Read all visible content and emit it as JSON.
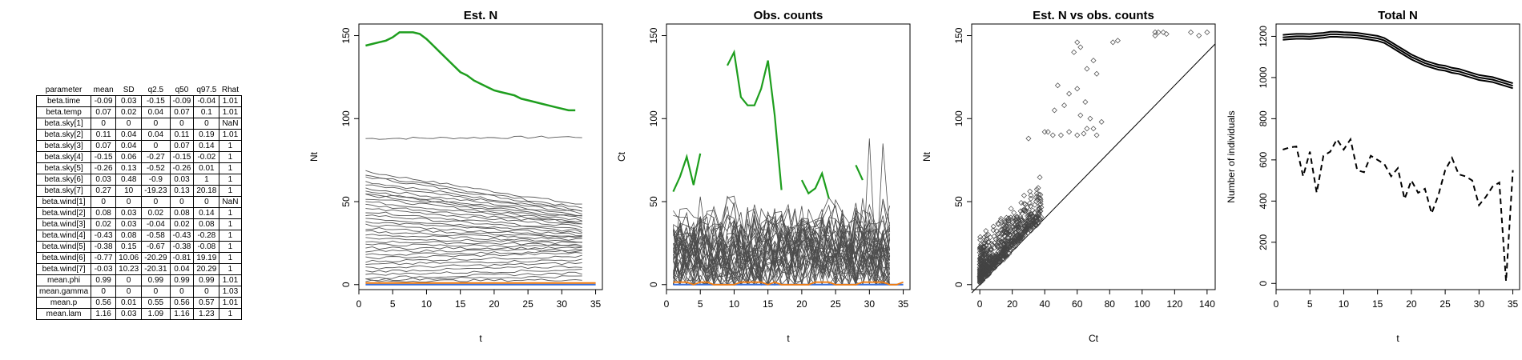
{
  "table": {
    "headers": [
      "parameter",
      "mean",
      "SD",
      "q2.5",
      "q50",
      "q97.5",
      "Rhat"
    ],
    "rows": [
      [
        "beta.time",
        "-0.09",
        "0.03",
        "-0.15",
        "-0.09",
        "-0.04",
        "1.01"
      ],
      [
        "beta.temp",
        "0.07",
        "0.02",
        "0.04",
        "0.07",
        "0.1",
        "1.01"
      ],
      [
        "beta.sky[1]",
        "0",
        "0",
        "0",
        "0",
        "0",
        "NaN"
      ],
      [
        "beta.sky[2]",
        "0.11",
        "0.04",
        "0.04",
        "0.11",
        "0.19",
        "1.01"
      ],
      [
        "beta.sky[3]",
        "0.07",
        "0.04",
        "0",
        "0.07",
        "0.14",
        "1"
      ],
      [
        "beta.sky[4]",
        "-0.15",
        "0.06",
        "-0.27",
        "-0.15",
        "-0.02",
        "1"
      ],
      [
        "beta.sky[5]",
        "-0.26",
        "0.13",
        "-0.52",
        "-0.26",
        "0.01",
        "1"
      ],
      [
        "beta.sky[6]",
        "0.03",
        "0.48",
        "-0.9",
        "0.03",
        "1",
        "1"
      ],
      [
        "beta.sky[7]",
        "0.27",
        "10",
        "-19.23",
        "0.13",
        "20.18",
        "1"
      ],
      [
        "beta.wind[1]",
        "0",
        "0",
        "0",
        "0",
        "0",
        "NaN"
      ],
      [
        "beta.wind[2]",
        "0.08",
        "0.03",
        "0.02",
        "0.08",
        "0.14",
        "1"
      ],
      [
        "beta.wind[3]",
        "0.02",
        "0.03",
        "-0.04",
        "0.02",
        "0.08",
        "1"
      ],
      [
        "beta.wind[4]",
        "-0.43",
        "0.08",
        "-0.58",
        "-0.43",
        "-0.28",
        "1"
      ],
      [
        "beta.wind[5]",
        "-0.38",
        "0.15",
        "-0.67",
        "-0.38",
        "-0.08",
        "1"
      ],
      [
        "beta.wind[6]",
        "-0.77",
        "10.06",
        "-20.29",
        "-0.81",
        "19.19",
        "1"
      ],
      [
        "beta.wind[7]",
        "-0.03",
        "10.23",
        "-20.31",
        "0.04",
        "20.29",
        "1"
      ],
      [
        "mean.phi",
        "0.99",
        "0",
        "0.99",
        "0.99",
        "0.99",
        "1.01"
      ],
      [
        "mean.gamma",
        "0",
        "0",
        "0",
        "0",
        "0",
        "1.03"
      ],
      [
        "mean.p",
        "0.56",
        "0.01",
        "0.55",
        "0.56",
        "0.57",
        "1.01"
      ],
      [
        "mean.lam",
        "1.16",
        "0.03",
        "1.09",
        "1.16",
        "1.23",
        "1"
      ]
    ]
  },
  "colors": {
    "green": "#1e9e1e",
    "orange": "#f07b0f",
    "blue": "#3a6fd8",
    "grey": "#4d4d4d",
    "black": "#000000"
  },
  "chart_data": [
    {
      "type": "line",
      "title": "Est. N",
      "xlabel": "t",
      "ylabel": "Nt",
      "xlim": [
        0,
        36
      ],
      "ylim": [
        -3,
        157
      ],
      "xticks": [
        0,
        5,
        10,
        15,
        20,
        25,
        30,
        35
      ],
      "yticks": [
        0,
        50,
        100,
        150
      ],
      "x_start": 1,
      "highlight_series": [
        {
          "color": "green",
          "values": [
            144,
            145,
            146,
            147,
            149,
            152,
            152,
            152,
            151,
            148,
            144,
            140,
            136,
            132,
            128,
            126,
            123,
            121,
            119,
            117,
            116,
            115,
            114,
            112,
            111,
            110,
            109,
            108,
            107,
            106,
            105,
            105
          ]
        }
      ],
      "grey_series_start": [
        88,
        68,
        66,
        65,
        62,
        60,
        58,
        56,
        55,
        54,
        52,
        50,
        48,
        46,
        44,
        42,
        40,
        38,
        36,
        34,
        32,
        30,
        28,
        26,
        24,
        22,
        20,
        18,
        16,
        14,
        12,
        10,
        8,
        6,
        4,
        3,
        2
      ],
      "grey_series_end": [
        89,
        48,
        46,
        45,
        44,
        43,
        42,
        41,
        40,
        39,
        38,
        37,
        36,
        35,
        33,
        32,
        31,
        30,
        29,
        28,
        27,
        26,
        25,
        24,
        23,
        22,
        21,
        20,
        19,
        17,
        15,
        13,
        11,
        9,
        7,
        5,
        3
      ],
      "bottom_series": [
        {
          "color": "orange",
          "value": 1
        },
        {
          "color": "blue",
          "value": 0
        }
      ]
    },
    {
      "type": "line",
      "title": "Obs. counts",
      "xlabel": "t",
      "ylabel": "Ct",
      "xlim": [
        0,
        36
      ],
      "ylim": [
        -3,
        157
      ],
      "xticks": [
        0,
        5,
        10,
        15,
        20,
        25,
        30,
        35
      ],
      "yticks": [
        0,
        50,
        100,
        150
      ],
      "x_start": 1,
      "highlight_series": [
        {
          "color": "green",
          "values": [
            56,
            65,
            77,
            60,
            79,
            null,
            null,
            null,
            132,
            140,
            113,
            108,
            108,
            118,
            135,
            102,
            57,
            null,
            null,
            63,
            55,
            58,
            67,
            52,
            null,
            null,
            null,
            72,
            63,
            null,
            null,
            null,
            null,
            null,
            null
          ]
        }
      ],
      "grey_series_count": 40,
      "grey_range": [
        0,
        88
      ],
      "bottom_series": [
        {
          "color": "orange",
          "value": 0
        },
        {
          "color": "blue",
          "value": 0
        }
      ]
    },
    {
      "type": "scatter",
      "title": "Est. N vs obs. counts",
      "xlabel": "Ct",
      "ylabel": "Nt",
      "xlim": [
        -5,
        145
      ],
      "ylim": [
        -3,
        157
      ],
      "xticks": [
        0,
        20,
        40,
        60,
        80,
        100,
        120,
        140
      ],
      "yticks": [
        0,
        50,
        100,
        150
      ],
      "identity_line": true,
      "high_points": [
        [
          108,
          152
        ],
        [
          110,
          152
        ],
        [
          113,
          152
        ],
        [
          115,
          151
        ],
        [
          130,
          152
        ],
        [
          135,
          150
        ],
        [
          140,
          152
        ],
        [
          108,
          150
        ],
        [
          82,
          146
        ],
        [
          85,
          147
        ],
        [
          60,
          146
        ],
        [
          62,
          143
        ],
        [
          58,
          140
        ],
        [
          70,
          135
        ],
        [
          66,
          130
        ],
        [
          72,
          127
        ],
        [
          48,
          120
        ],
        [
          55,
          115
        ],
        [
          60,
          118
        ],
        [
          65,
          110
        ],
        [
          52,
          108
        ],
        [
          46,
          105
        ],
        [
          62,
          102
        ],
        [
          68,
          100
        ],
        [
          75,
          98
        ],
        [
          72,
          90
        ],
        [
          55,
          92
        ],
        [
          50,
          90
        ],
        [
          60,
          90
        ],
        [
          64,
          91
        ],
        [
          45,
          90
        ],
        [
          40,
          92
        ],
        [
          42,
          92
        ],
        [
          30,
          88
        ],
        [
          70,
          94
        ],
        [
          66,
          94
        ]
      ]
    },
    {
      "type": "line",
      "title": "Total N",
      "xlabel": "t",
      "ylabel": "Number of individuals",
      "xlim": [
        0,
        36
      ],
      "ylim": [
        -30,
        1260
      ],
      "xticks": [
        0,
        5,
        10,
        15,
        20,
        25,
        30,
        35
      ],
      "yticks": [
        0,
        200,
        400,
        600,
        800,
        1000,
        1200
      ],
      "x_start": 1,
      "estimate": [
        1195,
        1198,
        1200,
        1200,
        1199,
        1202,
        1205,
        1210,
        1210,
        1208,
        1207,
        1205,
        1200,
        1195,
        1190,
        1180,
        1160,
        1140,
        1120,
        1100,
        1085,
        1070,
        1060,
        1050,
        1045,
        1035,
        1030,
        1020,
        1010,
        1000,
        995,
        990,
        980,
        970,
        960
      ],
      "ci_offset": 12,
      "observed": [
        650,
        660,
        665,
        520,
        640,
        440,
        620,
        640,
        700,
        650,
        700,
        550,
        540,
        620,
        600,
        580,
        520,
        560,
        410,
        500,
        440,
        460,
        340,
        430,
        550,
        610,
        530,
        520,
        500,
        380,
        420,
        470,
        490,
        10,
        550
      ]
    }
  ]
}
